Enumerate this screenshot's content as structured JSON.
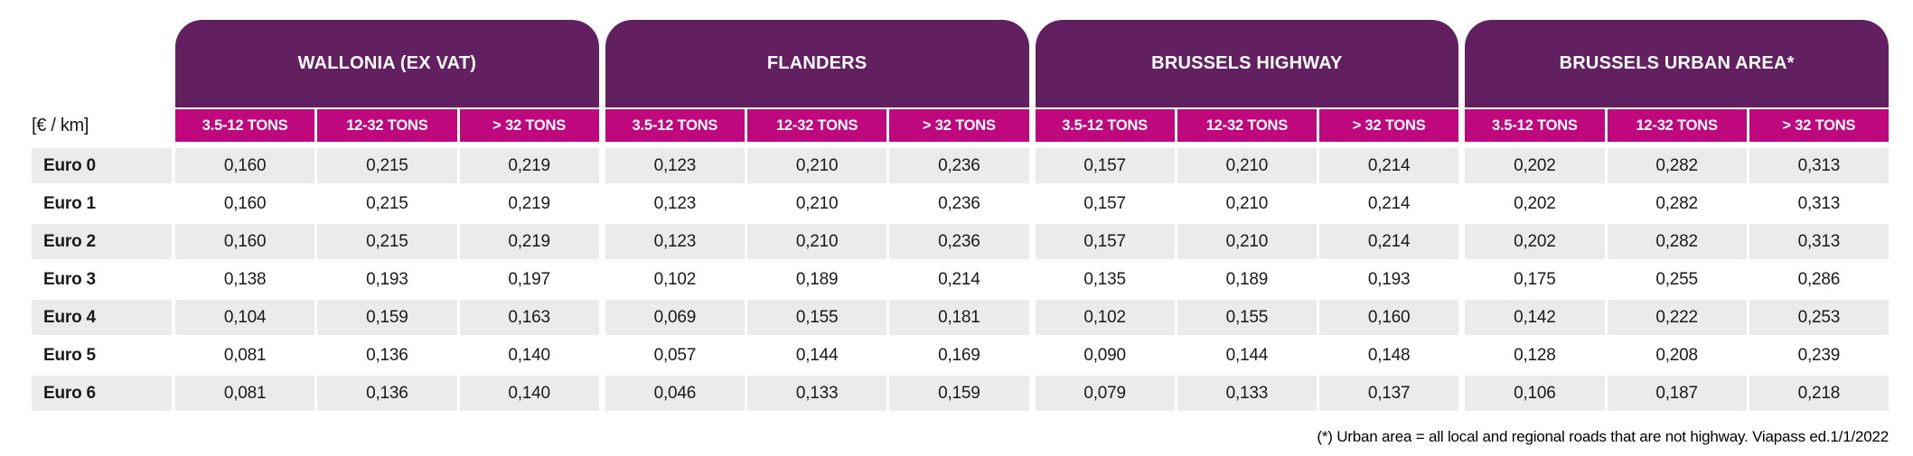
{
  "chart_data": {
    "type": "table",
    "unit": "[€ / km]",
    "column_groups": [
      {
        "name": "WALLONIA (EX VAT)",
        "columns": [
          "3.5-12 TONS",
          "12-32 TONS",
          "> 32 TONS"
        ]
      },
      {
        "name": "FLANDERS",
        "columns": [
          "3.5-12 TONS",
          "12-32 TONS",
          "> 32 TONS"
        ]
      },
      {
        "name": "BRUSSELS HIGHWAY",
        "columns": [
          "3.5-12 TONS",
          "12-32 TONS",
          "> 32 TONS"
        ]
      },
      {
        "name": "BRUSSELS URBAN AREA*",
        "columns": [
          "3.5-12 TONS",
          "12-32 TONS",
          "> 32 TONS"
        ]
      }
    ],
    "rows": [
      {
        "label": "Euro 0",
        "values": [
          "0,160",
          "0,215",
          "0,219",
          "0,123",
          "0,210",
          "0,236",
          "0,157",
          "0,210",
          "0,214",
          "0,202",
          "0,282",
          "0,313"
        ]
      },
      {
        "label": "Euro 1",
        "values": [
          "0,160",
          "0,215",
          "0,219",
          "0,123",
          "0,210",
          "0,236",
          "0,157",
          "0,210",
          "0,214",
          "0,202",
          "0,282",
          "0,313"
        ]
      },
      {
        "label": "Euro 2",
        "values": [
          "0,160",
          "0,215",
          "0,219",
          "0,123",
          "0,210",
          "0,236",
          "0,157",
          "0,210",
          "0,214",
          "0,202",
          "0,282",
          "0,313"
        ]
      },
      {
        "label": "Euro 3",
        "values": [
          "0,138",
          "0,193",
          "0,197",
          "0,102",
          "0,189",
          "0,214",
          "0,135",
          "0,189",
          "0,193",
          "0,175",
          "0,255",
          "0,286"
        ]
      },
      {
        "label": "Euro 4",
        "values": [
          "0,104",
          "0,159",
          "0,163",
          "0,069",
          "0,155",
          "0,181",
          "0,102",
          "0,155",
          "0,160",
          "0,142",
          "0,222",
          "0,253"
        ]
      },
      {
        "label": "Euro 5",
        "values": [
          "0,081",
          "0,136",
          "0,140",
          "0,057",
          "0,144",
          "0,169",
          "0,090",
          "0,144",
          "0,148",
          "0,128",
          "0,208",
          "0,239"
        ]
      },
      {
        "label": "Euro 6",
        "values": [
          "0,081",
          "0,136",
          "0,140",
          "0,046",
          "0,133",
          "0,159",
          "0,079",
          "0,133",
          "0,137",
          "0,106",
          "0,187",
          "0,218"
        ]
      }
    ]
  },
  "footnote": "(*) Urban area = all local and regional roads that are not highway. Viapass ed.1/1/2022",
  "colors": {
    "header_purple": "#632060",
    "header_magenta": "#C0087E",
    "row_stripe": "#EBEBEB"
  }
}
